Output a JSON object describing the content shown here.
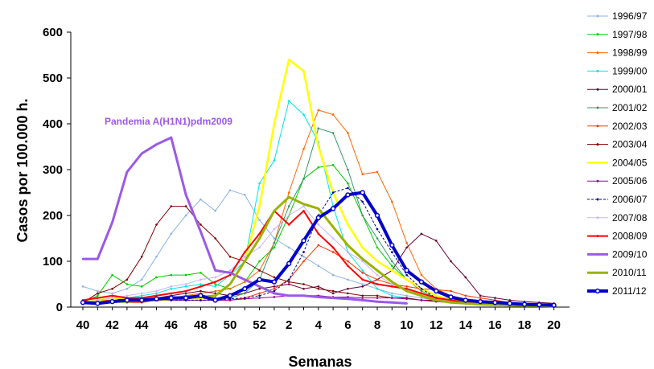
{
  "chart_data": {
    "type": "line",
    "xlabel": "Semanas",
    "ylabel": "Casos por 100.000 h.",
    "ylim": [
      0,
      600
    ],
    "yticks": [
      0,
      100,
      200,
      300,
      400,
      500,
      600
    ],
    "xtick_labels": [
      "40",
      "42",
      "44",
      "46",
      "48",
      "50",
      "52",
      "2",
      "4",
      "6",
      "8",
      "10",
      "12",
      "14",
      "16",
      "18",
      "20"
    ],
    "weeks": [
      "40",
      "41",
      "42",
      "43",
      "44",
      "45",
      "46",
      "47",
      "48",
      "49",
      "50",
      "51",
      "52",
      "1",
      "2",
      "3",
      "4",
      "5",
      "6",
      "7",
      "8",
      "9",
      "10",
      "11",
      "12",
      "13",
      "14",
      "15",
      "16",
      "17",
      "18",
      "19",
      "20"
    ],
    "grid": false,
    "legend_position": "right",
    "annotation": {
      "text": "Pandemia A(H1N1)pdm2009",
      "color": "#9b59e8"
    },
    "series": [
      {
        "name": "1996/97",
        "color": "#8db4e2",
        "width": 1,
        "values": [
          45,
          35,
          30,
          40,
          60,
          110,
          160,
          200,
          235,
          210,
          255,
          245,
          190,
          150,
          130,
          110,
          90,
          70,
          60,
          50,
          40,
          30,
          25,
          20,
          15,
          12,
          10,
          8,
          6,
          5,
          5,
          4,
          4
        ]
      },
      {
        "name": "1997/98",
        "color": "#00cc00",
        "width": 1,
        "values": [
          10,
          25,
          70,
          50,
          45,
          65,
          70,
          70,
          75,
          50,
          40,
          55,
          100,
          130,
          200,
          280,
          305,
          310,
          270,
          200,
          130,
          90,
          60,
          40,
          25,
          18,
          12,
          10,
          8,
          6,
          5,
          4,
          4
        ]
      },
      {
        "name": "1998/99",
        "color": "#ff6600",
        "width": 1,
        "values": [
          10,
          15,
          20,
          15,
          10,
          15,
          20,
          25,
          30,
          35,
          40,
          55,
          80,
          140,
          250,
          345,
          430,
          420,
          380,
          290,
          295,
          230,
          140,
          70,
          40,
          25,
          15,
          10,
          8,
          6,
          5,
          4,
          4
        ]
      },
      {
        "name": "1999/00",
        "color": "#00e5e5",
        "width": 1,
        "values": [
          10,
          15,
          20,
          20,
          25,
          30,
          40,
          45,
          50,
          45,
          70,
          100,
          270,
          320,
          450,
          420,
          360,
          220,
          120,
          80,
          40,
          25,
          20,
          15,
          12,
          10,
          8,
          6,
          5,
          4,
          4,
          3,
          3
        ]
      },
      {
        "name": "2000/01",
        "color": "#660033",
        "width": 1,
        "values": [
          10,
          15,
          20,
          15,
          15,
          20,
          25,
          30,
          35,
          30,
          25,
          30,
          40,
          45,
          50,
          40,
          45,
          30,
          40,
          45,
          60,
          80,
          130,
          160,
          145,
          100,
          65,
          25,
          20,
          15,
          12,
          10,
          8
        ]
      },
      {
        "name": "2001/02",
        "color": "#339966",
        "width": 1,
        "values": [
          10,
          12,
          15,
          15,
          15,
          20,
          20,
          25,
          25,
          20,
          20,
          30,
          60,
          140,
          220,
          280,
          390,
          380,
          300,
          200,
          150,
          100,
          60,
          35,
          20,
          15,
          10,
          8,
          6,
          5,
          4,
          3,
          3
        ]
      },
      {
        "name": "2002/03",
        "color": "#ff3300",
        "width": 1,
        "values": [
          10,
          15,
          15,
          10,
          10,
          15,
          15,
          20,
          20,
          15,
          15,
          20,
          30,
          40,
          60,
          100,
          135,
          120,
          100,
          75,
          60,
          50,
          45,
          40,
          38,
          35,
          25,
          20,
          15,
          10,
          8,
          6,
          5
        ]
      },
      {
        "name": "2003/04",
        "color": "#800000",
        "width": 1,
        "values": [
          10,
          30,
          40,
          60,
          110,
          180,
          220,
          220,
          180,
          150,
          110,
          100,
          80,
          65,
          55,
          50,
          40,
          35,
          30,
          25,
          25,
          20,
          20,
          15,
          15,
          12,
          10,
          8,
          6,
          5,
          4,
          3,
          3
        ]
      },
      {
        "name": "2004/05",
        "color": "#ffff00",
        "width": 2.5,
        "values": [
          10,
          15,
          20,
          20,
          20,
          20,
          20,
          20,
          20,
          25,
          50,
          100,
          220,
          400,
          540,
          515,
          350,
          250,
          180,
          130,
          100,
          80,
          60,
          40,
          25,
          15,
          10,
          8,
          6,
          5,
          4,
          3,
          3
        ]
      },
      {
        "name": "2005/06",
        "color": "#990099",
        "width": 1,
        "values": [
          10,
          10,
          12,
          12,
          15,
          15,
          15,
          15,
          15,
          15,
          15,
          18,
          20,
          22,
          25,
          25,
          25,
          22,
          22,
          20,
          20,
          20,
          18,
          15,
          12,
          10,
          8,
          6,
          5,
          4,
          3,
          3,
          2
        ]
      },
      {
        "name": "2006/07",
        "color": "#000099",
        "width": 1,
        "dashed": true,
        "values": [
          10,
          10,
          12,
          12,
          15,
          15,
          15,
          15,
          15,
          15,
          18,
          20,
          25,
          35,
          60,
          120,
          200,
          250,
          260,
          230,
          170,
          120,
          70,
          40,
          20,
          15,
          10,
          8,
          6,
          5,
          4,
          3,
          3
        ]
      },
      {
        "name": "2007/08",
        "color": "#ccb3ff",
        "width": 1,
        "values": [
          10,
          15,
          20,
          25,
          30,
          35,
          45,
          50,
          60,
          65,
          80,
          110,
          130,
          170,
          200,
          220,
          180,
          150,
          120,
          100,
          70,
          50,
          35,
          25,
          18,
          12,
          8,
          6,
          5,
          4,
          3,
          3,
          2
        ]
      },
      {
        "name": "2008/09",
        "color": "#ff0000",
        "width": 2,
        "values": [
          15,
          20,
          25,
          20,
          20,
          25,
          30,
          35,
          45,
          55,
          70,
          120,
          160,
          210,
          180,
          210,
          160,
          130,
          90,
          60,
          50,
          45,
          40,
          30,
          20,
          15,
          10,
          8,
          6,
          5,
          4,
          3,
          3
        ]
      },
      {
        "name": "2009/10",
        "color": "#9b59e8",
        "width": 3,
        "values": [
          105,
          105,
          185,
          295,
          335,
          355,
          370,
          245,
          165,
          80,
          75,
          60,
          45,
          30,
          25,
          25,
          22,
          20,
          18,
          15,
          12,
          10,
          8
        ]
      },
      {
        "name": "2010/11",
        "color": "#99b300",
        "width": 3,
        "values": [
          10,
          10,
          12,
          12,
          15,
          15,
          18,
          20,
          22,
          25,
          50,
          100,
          150,
          210,
          240,
          225,
          215,
          175,
          135,
          105,
          80,
          55,
          35,
          25,
          15,
          10,
          8,
          6,
          5,
          4,
          3,
          3,
          2
        ]
      },
      {
        "name": "2011/12",
        "color": "#0000cc",
        "width": 4,
        "markers": true,
        "values": [
          10,
          8,
          12,
          15,
          15,
          18,
          20,
          20,
          25,
          15,
          25,
          40,
          60,
          55,
          95,
          145,
          195,
          215,
          245,
          250,
          200,
          135,
          80,
          55,
          35,
          22,
          15,
          12,
          10,
          8,
          6,
          5,
          4
        ]
      }
    ]
  }
}
